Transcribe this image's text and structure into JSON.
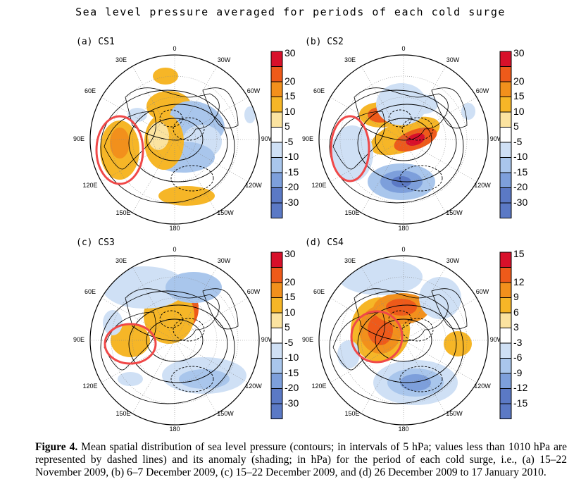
{
  "title": "Sea level pressure averaged for periods of each cold surge",
  "lon_labels": {
    "top": "0",
    "left_upper": "30E",
    "right_upper": "30W",
    "left_mid": "60E",
    "right_mid": "60W",
    "left": "90E",
    "right": "90W",
    "left_lower": "120E",
    "right_lower": "120W",
    "left_bottom": "150E",
    "right_bottom": "150W",
    "bottom": "180"
  },
  "panels": [
    {
      "label": "(a) CS1",
      "colorbar": [
        "30",
        "20",
        "15",
        "10",
        "5",
        "-5",
        "-10",
        "-15",
        "-20",
        "-30"
      ]
    },
    {
      "label": "(b) CS2",
      "colorbar": [
        "30",
        "20",
        "15",
        "10",
        "5",
        "-5",
        "-10",
        "-15",
        "-20",
        "-30"
      ]
    },
    {
      "label": "(c) CS3",
      "colorbar": [
        "30",
        "20",
        "15",
        "10",
        "5",
        "-5",
        "-10",
        "-15",
        "-20",
        "-30"
      ]
    },
    {
      "label": "(d) CS4",
      "colorbar": [
        "15",
        "12",
        "9",
        "6",
        "3",
        "-3",
        "-6",
        "-9",
        "-12",
        "-15"
      ]
    }
  ],
  "colorbar_colors": [
    "#d8102a",
    "#ee5a1a",
    "#f2901c",
    "#f6b627",
    "#fbe3a0",
    "#ffffff",
    "#cfe0f5",
    "#a9c6ec",
    "#7d9fdb",
    "#5b79c5"
  ],
  "caption": {
    "label": "Figure 4.",
    "text": "Mean spatial distribution of sea level pressure (contours; in intervals of 5 hPa; values less than 1010 hPa are represented by dashed lines) and its anomaly (shading; in hPa) for the period of each cold surge, i.e., (a) 15–22 November 2009, (b) 6–7 December 2009, (c) 15–22 December 2009, and (d) 26 December 2009 to 17 January 2010."
  }
}
